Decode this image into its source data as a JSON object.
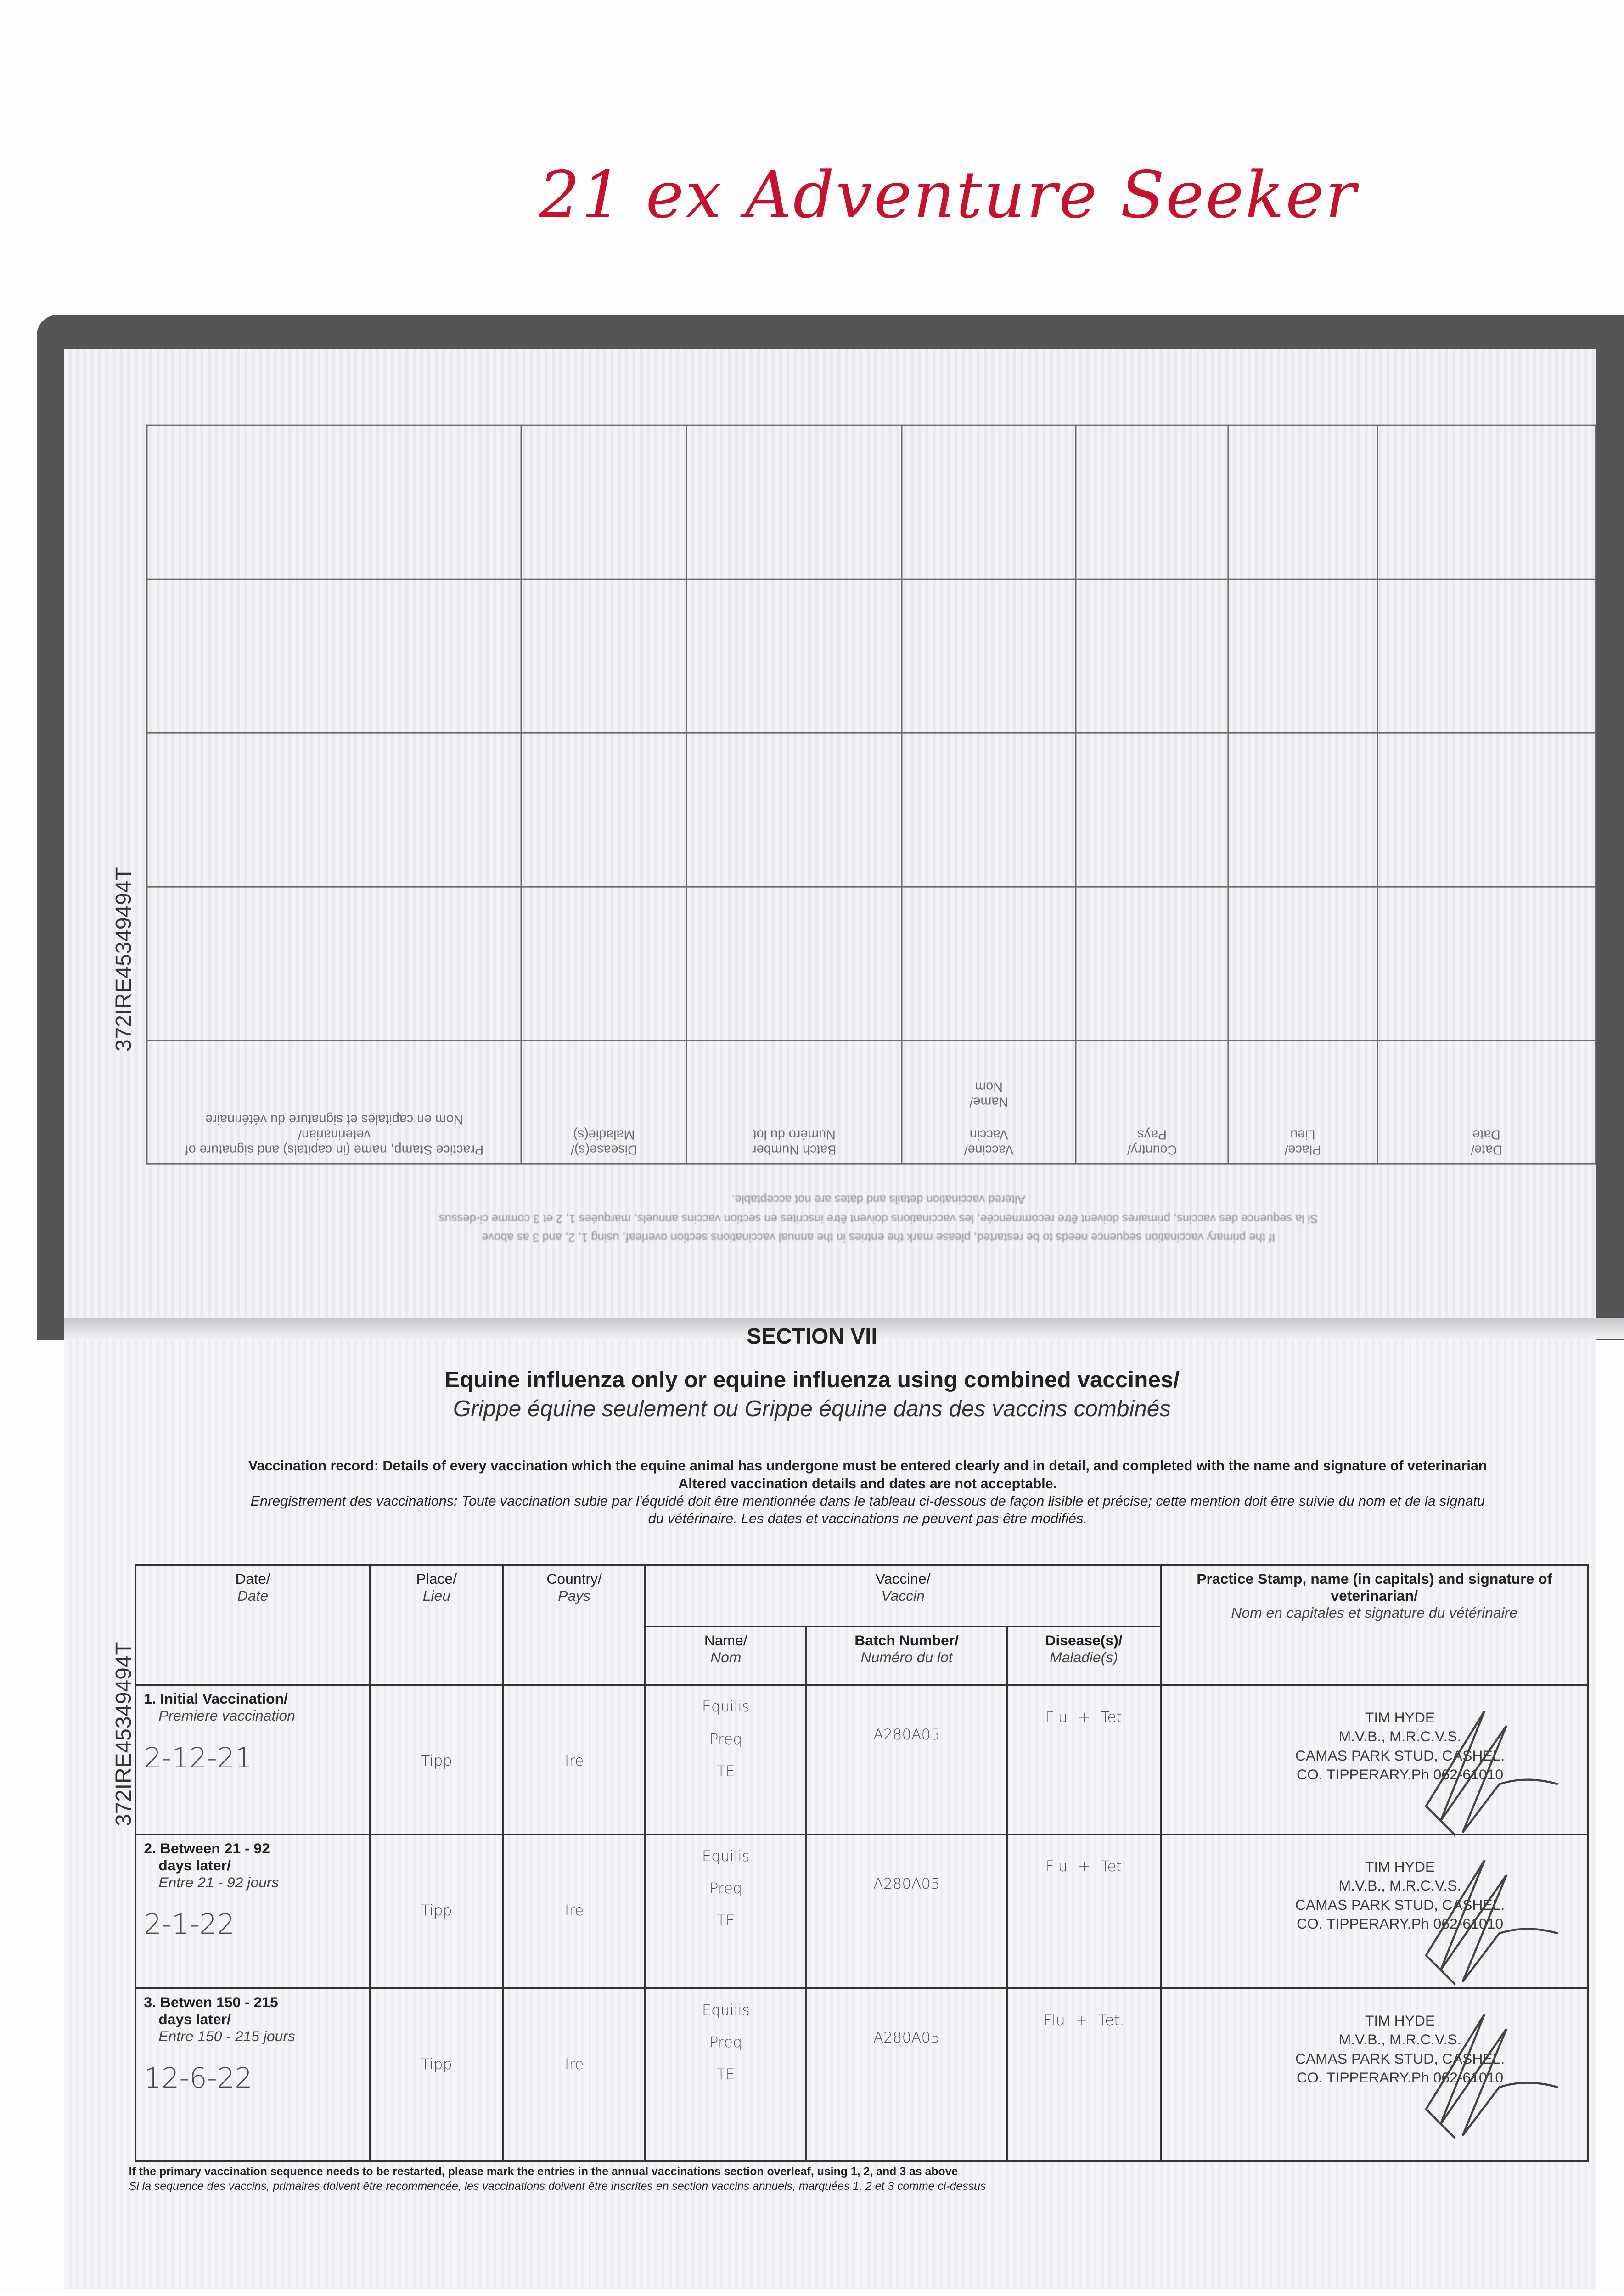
{
  "handwritten_title": "21 ex Adventure Seeker",
  "passport_id": "372IRE45349494T",
  "previous_page": {
    "headers": {
      "practice_stamp": "Practice Stamp, name (in capitals) and signature of veterinarian/",
      "practice_stamp_fr": "Nom en capitales et signature du vétérinaire",
      "diseases": "Disease(s)/",
      "diseases_fr": "Maladie(s)",
      "batch": "Batch Number",
      "batch_fr": "Numéro du lot",
      "name": "Name/",
      "name_fr": "Nom",
      "vaccine": "Vaccine/",
      "vaccine_fr": "Vaccin",
      "country": "Country/",
      "country_fr": "Pays",
      "place": "Place/",
      "place_fr": "Lieu",
      "date": "Date/",
      "date_fr": "Date"
    }
  },
  "section": {
    "label": "SECTION VII",
    "title": "Equine influenza only or equine influenza using combined vaccines/",
    "title_fr": "Grippe équine seulement ou Grippe équine dans des vaccins combinés",
    "record_lead": "Vaccination record:",
    "record_text": " Details of every vaccination which the equine animal has undergone must be entered clearly and in detail, and completed with the name and signature of veterinarian",
    "record_altered": "Altered vaccination details and dates are not acceptable.",
    "record_fr_lead": "Enregistrement des vaccinations:",
    "record_fr": " Toute vaccination subie par l'équidé doit être mentionnée dans le tableau ci-dessous de façon lisible et précise; cette mention doit être suivie du nom et de la signatu",
    "record_fr_2": "du vétérinaire. Les dates et vaccinations ne peuvent pas être modifiés."
  },
  "table": {
    "headers": {
      "date": "Date/",
      "date_fr": "Date",
      "place": "Place/",
      "place_fr": "Lieu",
      "country": "Country/",
      "country_fr": "Pays",
      "vaccine": "Vaccine/",
      "vaccine_fr": "Vaccin",
      "name": "Name/",
      "name_fr": "Nom",
      "batch": "Batch Number/",
      "batch_fr": "Numéro du lot",
      "diseases": "Disease(s)/",
      "diseases_fr": "Maladie(s)",
      "practice_stamp": "Practice Stamp, name (in capitals) and signature of veterinarian/",
      "practice_stamp_fr": "Nom en capitales et signature du vétérinaire"
    },
    "rows": [
      {
        "label": "1. Initial Vaccination/",
        "label_2": "",
        "label_fr": "Premiere vaccination",
        "date": "2-12-21",
        "place": "Tipp",
        "country": "Ire",
        "name": "Equilis Preq TE",
        "batch": "A280A05",
        "diseases": "Flu + Tet",
        "stamp": [
          "TIM HYDE",
          "M.V.B., M.R.C.V.S.",
          "CAMAS PARK STUD, CASHEL.",
          "CO. TIPPERARY.Ph 062-61010"
        ]
      },
      {
        "label": "2. Between 21 - 92",
        "label_2": "days later/",
        "label_fr": "Entre 21 - 92 jours",
        "date": "2-1-22",
        "place": "Tipp",
        "country": "Ire",
        "name": "Equilis Preq TE",
        "batch": "A280A05",
        "diseases": "Flu + Tet",
        "stamp": [
          "TIM HYDE",
          "M.V.B., M.R.C.V.S.",
          "CAMAS PARK STUD, CASHEL.",
          "CO. TIPPERARY.Ph 062-61010"
        ]
      },
      {
        "label": "3. Betwen 150 - 215",
        "label_2": "days later/",
        "label_fr": "Entre 150 - 215 jours",
        "date": "12-6-22",
        "place": "Tipp",
        "country": "Ire",
        "name": "Equilis Preq TE",
        "batch": "A280A05",
        "diseases": "Flu + Tet.",
        "stamp": [
          "TIM HYDE",
          "M.V.B., M.R.C.V.S.",
          "CAMAS PARK STUD, CASHEL.",
          "CO. TIPPERARY.Ph 062-61010"
        ]
      }
    ]
  },
  "footnote": "If the primary vaccination sequence needs to be restarted, please mark the entries in the annual vaccinations section overleaf, using 1, 2, and 3 as above",
  "footnote_fr": "Si la sequence des vaccins, primaires doivent être recommencée, les vaccinations doivent être inscrites en section vaccins annuels, marquées 1, 2 et 3 comme ci-dessus",
  "colors": {
    "handwriting_red": "#c4122f",
    "ink": "#222222",
    "pencil": "#4a4a4a"
  }
}
